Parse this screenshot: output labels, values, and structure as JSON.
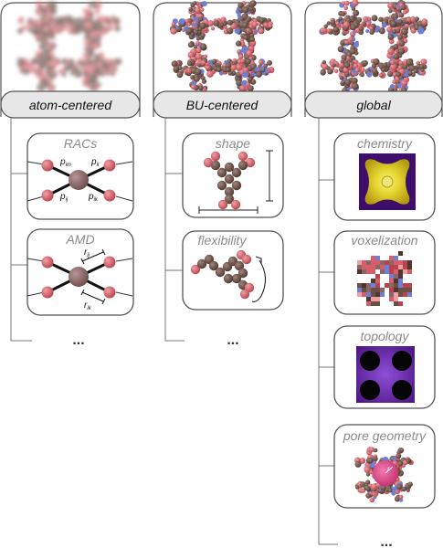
{
  "columns": [
    {
      "header": "atom-centered",
      "cards": [
        {
          "title": "RACs",
          "labels": [
            "p",
            "p",
            "p",
            "p"
          ],
          "subs": [
            "im",
            "ij",
            "ik",
            "il"
          ]
        },
        {
          "title": "AMD",
          "labels": [
            "r",
            "r"
          ],
          "subs": [
            "ij",
            "ik"
          ]
        }
      ],
      "ellipsis": "..."
    },
    {
      "header": "BU-centered",
      "cards": [
        {
          "title": "shape"
        },
        {
          "title": "flexibility"
        }
      ],
      "ellipsis": "..."
    },
    {
      "header": "global",
      "cards": [
        {
          "title": "chemistry"
        },
        {
          "title": "voxelization"
        },
        {
          "title": "topology"
        },
        {
          "title": "pore geometry",
          "label": "r"
        }
      ],
      "ellipsis": "..."
    }
  ],
  "colors": {
    "carbon": "#6b4f45",
    "oxygen": "#d65f67",
    "nitrogen": "#6f7fd6",
    "metal": "#8a6666",
    "header_fill": "#e7e7e7",
    "card_border": "#555555",
    "title_gray": "#8a8a8a"
  }
}
